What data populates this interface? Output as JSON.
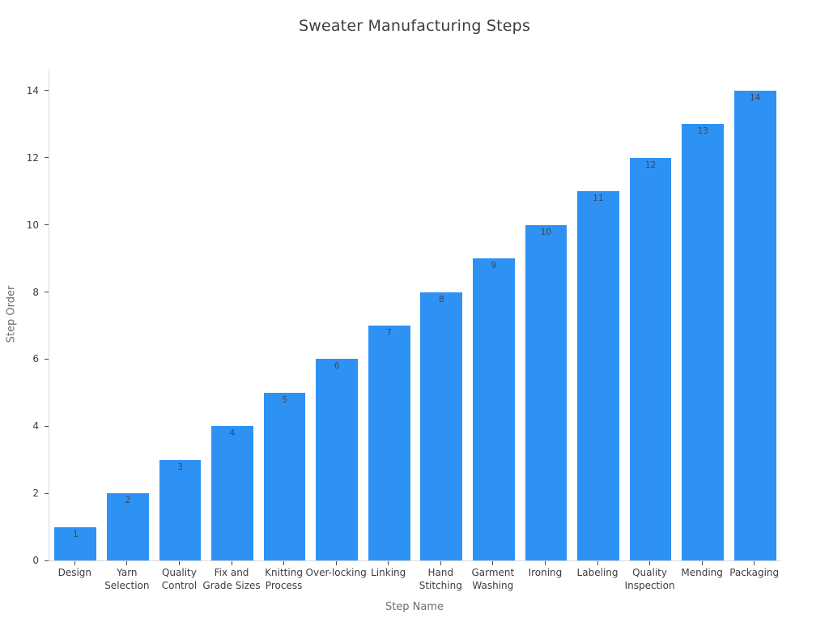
{
  "chart_data": {
    "type": "bar",
    "title": "Sweater Manufacturing Steps",
    "xlabel": "Step Name",
    "ylabel": "Step Order",
    "categories": [
      "Design",
      "Yarn Selection",
      "Quality Control",
      "Fix and Grade Sizes",
      "Knitting Process",
      "Over-locking",
      "Linking",
      "Hand Stitching",
      "Garment Washing",
      "Ironing",
      "Labeling",
      "Quality Inspection",
      "Mending",
      "Packaging"
    ],
    "values": [
      1,
      2,
      3,
      4,
      5,
      6,
      7,
      8,
      9,
      10,
      11,
      12,
      13,
      14
    ],
    "bar_value_labels": [
      "1",
      "2",
      "3",
      "4",
      "5",
      "6",
      "7",
      "8",
      "9",
      "10",
      "11",
      "12",
      "13",
      "14"
    ],
    "xtick_labels": [
      [
        "Design"
      ],
      [
        "Yarn",
        "Selection"
      ],
      [
        "Quality",
        "Control"
      ],
      [
        "Fix and",
        "Grade Sizes"
      ],
      [
        "Knitting",
        "Process"
      ],
      [
        "Over-locking"
      ],
      [
        "Linking"
      ],
      [
        "Hand",
        "Stitching"
      ],
      [
        "Garment",
        "Washing"
      ],
      [
        "Ironing"
      ],
      [
        "Labeling"
      ],
      [
        "Quality",
        "Inspection"
      ],
      [
        "Mending"
      ],
      [
        "Packaging"
      ]
    ],
    "yticks": [
      0,
      2,
      4,
      6,
      8,
      10,
      12,
      14
    ],
    "ytick_labels": [
      "0",
      "2",
      "4",
      "6",
      "8",
      "10",
      "12",
      "14"
    ],
    "ylim": [
      0,
      14.65
    ],
    "grid": false,
    "legend_position": "none",
    "colors": {
      "bar": "#2e92f4",
      "axis_line": "#d9d9d9",
      "tick_mark": "#4a4a4a",
      "tick_text": "#3d3d3d",
      "axis_title_text": "#6e6e6e",
      "title_text": "#3d3d3d",
      "value_label_text": "#3f4752"
    }
  }
}
